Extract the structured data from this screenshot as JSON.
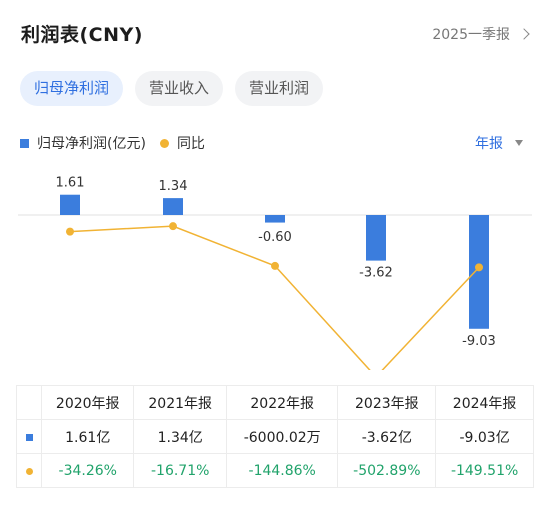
{
  "header": {
    "title": "利润表(CNY)",
    "period": "2025一季报"
  },
  "tabs": [
    {
      "label": "归母净利润"
    },
    {
      "label": "营业收入"
    },
    {
      "label": "营业利润"
    }
  ],
  "legend": {
    "series1": "归母净利润(亿元)",
    "series2": "同比",
    "report_type": "年报"
  },
  "colors": {
    "bar": "#3b7ddd",
    "line": "#f1b334",
    "positive": "#21a36b",
    "tab_active": "#2f6fe0"
  },
  "chart_data": {
    "type": "bar",
    "categories": [
      "2020年报",
      "2021年报",
      "2022年报",
      "2023年报",
      "2024年报"
    ],
    "series": [
      {
        "name": "归母净利润(亿元)",
        "values": [
          1.61,
          1.34,
          -0.6,
          -3.62,
          -9.03
        ],
        "labels": [
          "1.61",
          "1.34",
          "-0.60",
          "-3.62",
          "-9.03"
        ]
      },
      {
        "name": "同比",
        "values": [
          -34.26,
          -16.71,
          -144.86,
          -502.89,
          -149.51
        ]
      }
    ]
  },
  "table": {
    "headers": [
      "2020年报",
      "2021年报",
      "2022年报",
      "2023年报",
      "2024年报"
    ],
    "profit_row": [
      "1.61亿",
      "1.34亿",
      "-6000.02万",
      "-3.62亿",
      "-9.03亿"
    ],
    "yoy_row": [
      "-34.26%",
      "-16.71%",
      "-144.86%",
      "-502.89%",
      "-149.51%"
    ]
  }
}
